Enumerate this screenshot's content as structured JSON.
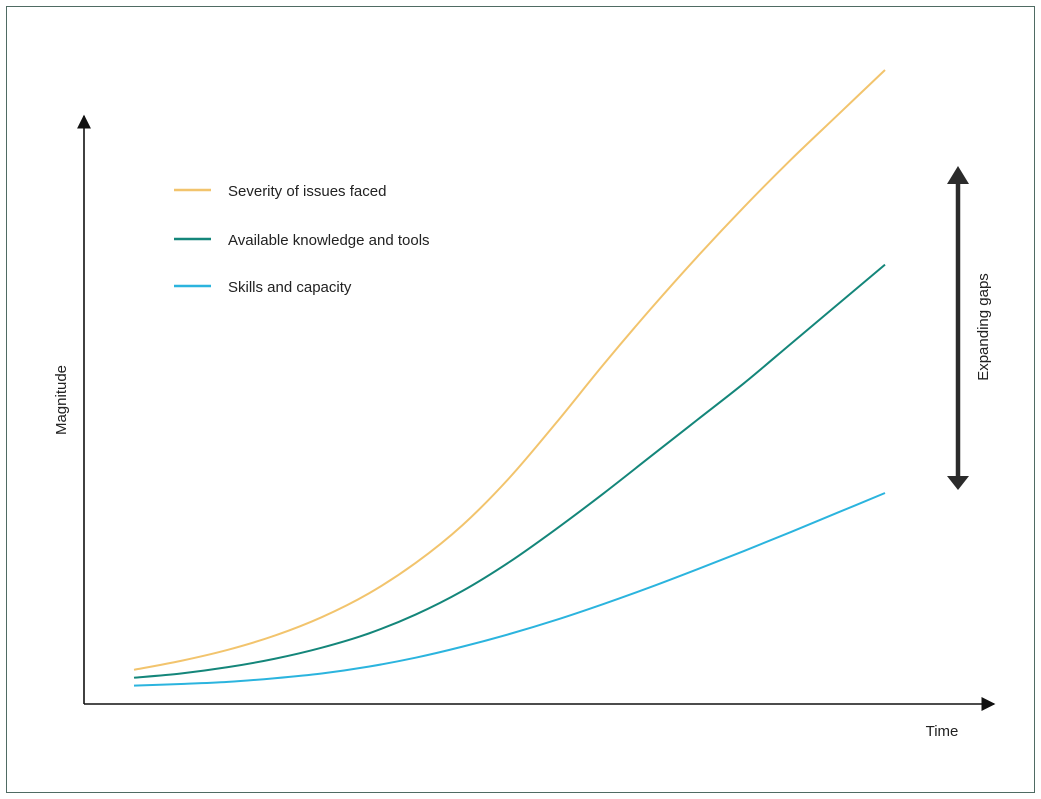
{
  "chart_data": {
    "type": "line",
    "title": "",
    "xlabel": "Time",
    "ylabel": "Magnitude",
    "x": [
      0,
      1,
      2,
      3,
      4,
      5,
      6,
      7,
      8,
      9,
      10,
      11,
      12,
      13,
      14,
      15,
      16
    ],
    "series": [
      {
        "name": "Severity of issues faced",
        "color": "#f2c46d",
        "values": [
          6.5,
          8.2,
          10.3,
          13.0,
          16.5,
          21.0,
          26.8,
          34.0,
          43.0,
          53.5,
          64.5,
          75.0,
          85.0,
          94.5,
          103.5,
          112.0,
          120.5
        ]
      },
      {
        "name": "Available knowledge and tools",
        "color": "#14867a",
        "values": [
          5.0,
          5.8,
          7.0,
          8.6,
          10.7,
          13.4,
          17.0,
          21.5,
          27.0,
          33.3,
          40.0,
          47.0,
          54.0,
          61.0,
          68.5,
          76.0,
          83.5
        ]
      },
      {
        "name": "Skills and capacity",
        "color": "#2bb4de",
        "values": [
          3.5,
          3.8,
          4.2,
          4.9,
          5.8,
          7.1,
          8.8,
          10.9,
          13.3,
          16.0,
          19.0,
          22.2,
          25.6,
          29.1,
          32.7,
          36.4,
          40.1
        ]
      }
    ],
    "legend_position": "top-left",
    "grid": false,
    "annotations": [
      {
        "text": "Expanding gaps",
        "type": "double-arrow",
        "color": "#2b2b2b"
      }
    ]
  }
}
